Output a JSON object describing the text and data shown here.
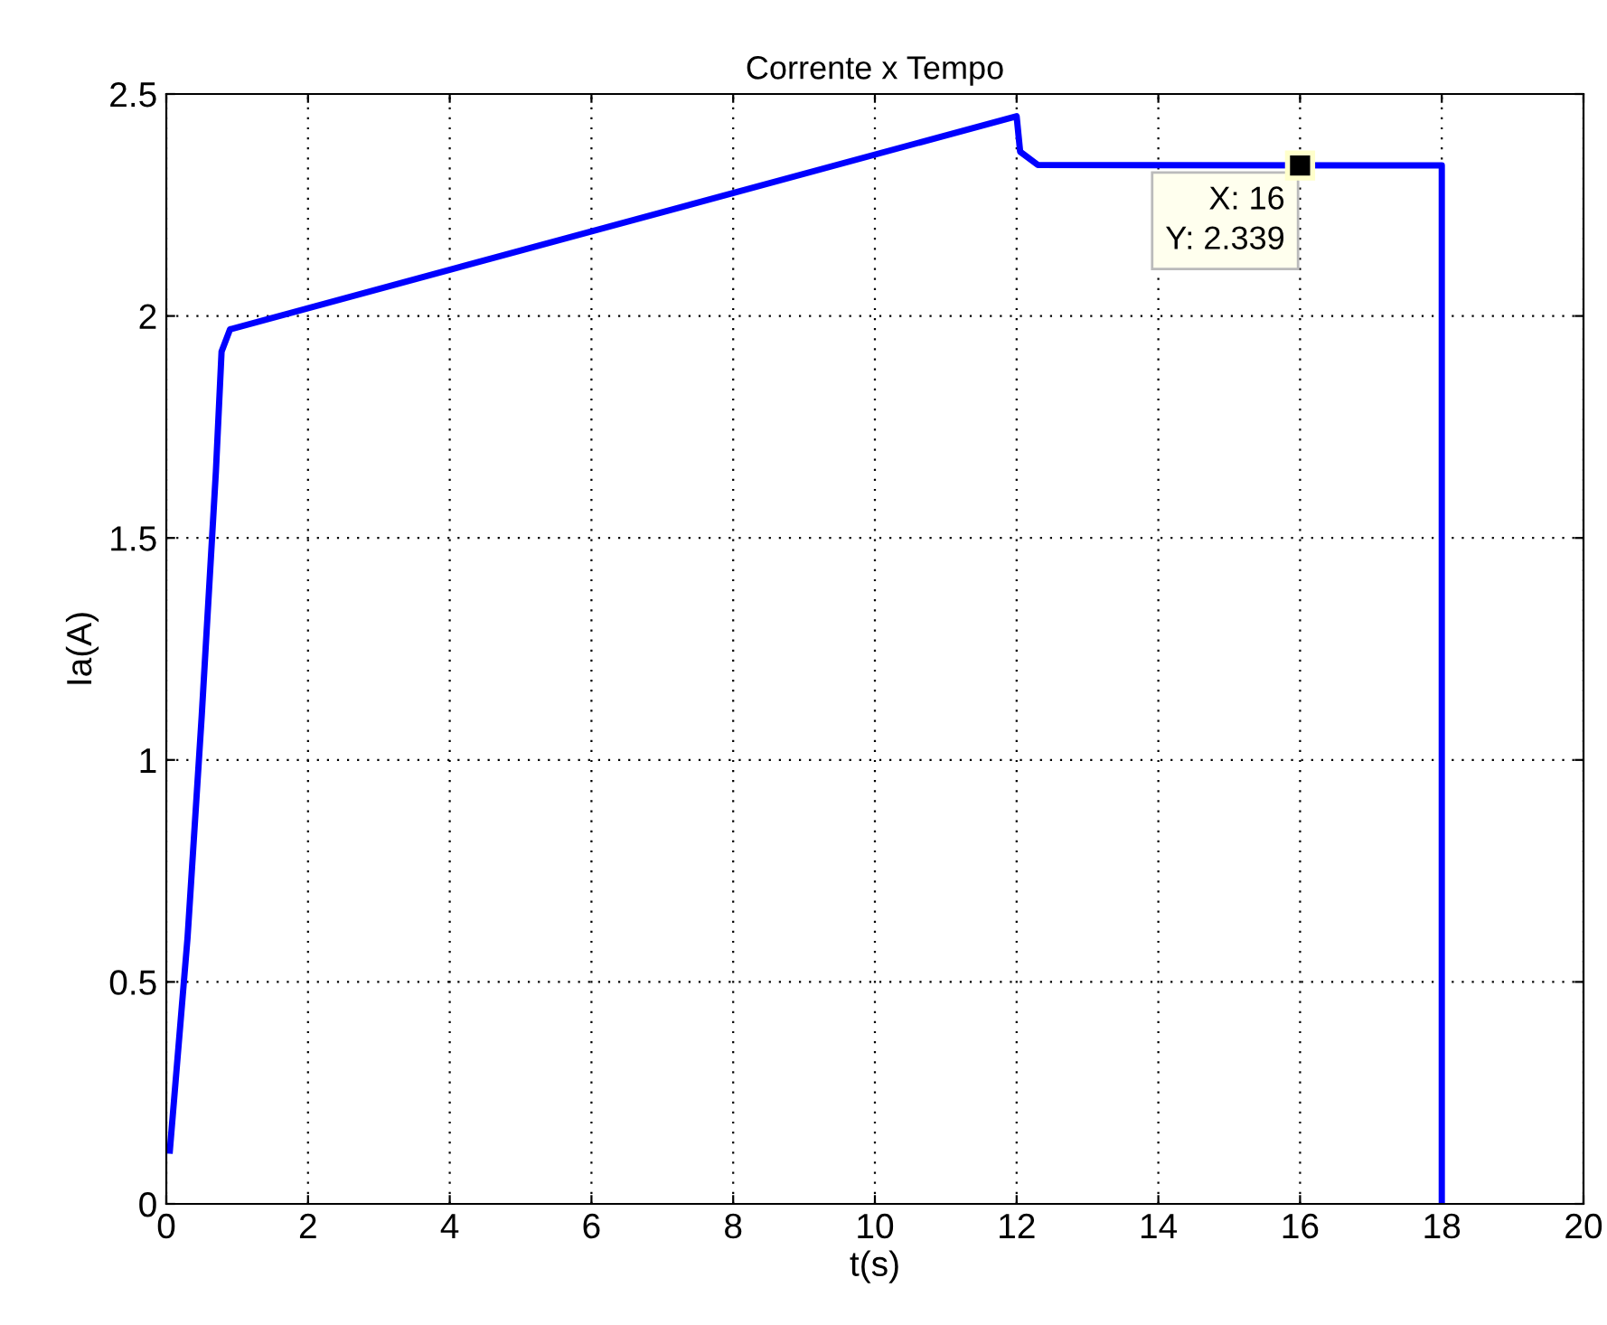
{
  "chart_data": {
    "type": "line",
    "title": "Corrente x Tempo",
    "xlabel": "t(s)",
    "ylabel": "Ia(A)",
    "series": [
      {
        "color": "#0000ff",
        "x": [
          0.05,
          0.3,
          0.5,
          0.7,
          0.78,
          0.9,
          12,
          12.05,
          12.3,
          18,
          18
        ],
        "values": [
          0.12,
          0.6,
          1.1,
          1.65,
          1.92,
          1.97,
          2.45,
          2.37,
          2.34,
          2.339,
          0
        ]
      }
    ],
    "annotations": [
      {
        "text": "X: 16\nY: 2.339",
        "x": 16,
        "y": 2.339
      }
    ],
    "xlim": [
      0,
      20
    ],
    "xticks": [
      0,
      2,
      4,
      6,
      8,
      10,
      12,
      14,
      16,
      18,
      20
    ],
    "ylim": [
      0,
      2.5
    ],
    "yticks": [
      0,
      0.5,
      1,
      1.5,
      2,
      2.5
    ],
    "grid": true
  }
}
